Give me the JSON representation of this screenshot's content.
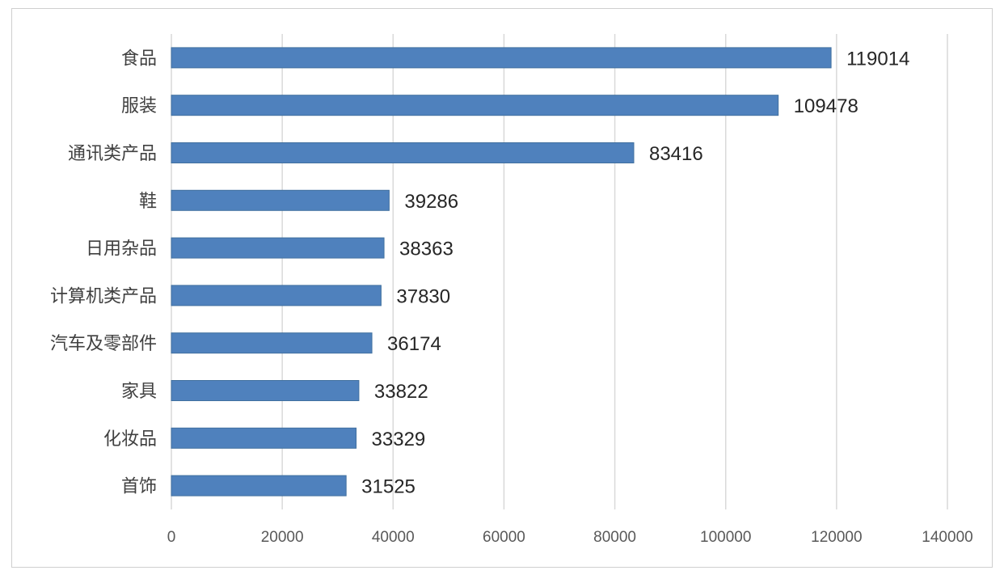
{
  "chart_data": {
    "type": "bar",
    "orientation": "horizontal",
    "categories": [
      "食品",
      "服装",
      "通讯类产品",
      "鞋",
      "日用杂品",
      "计算机类产品",
      "汽车及零部件",
      "家具",
      "化妆品",
      "首饰"
    ],
    "values": [
      119014,
      109478,
      83416,
      39286,
      38363,
      37830,
      36174,
      33822,
      33329,
      31525
    ],
    "data_labels": [
      "119014",
      "109478",
      "83416",
      "39286",
      "38363",
      "37830",
      "36174",
      "33822",
      "33329",
      "31525"
    ],
    "xlim": [
      0,
      140000
    ],
    "x_ticks": [
      0,
      20000,
      40000,
      60000,
      80000,
      100000,
      120000,
      140000
    ],
    "x_tick_labels": [
      "0",
      "20000",
      "40000",
      "60000",
      "80000",
      "100000",
      "120000",
      "140000"
    ],
    "grid": "vertical",
    "legend": "none",
    "bar_color": "#4f81bd"
  }
}
